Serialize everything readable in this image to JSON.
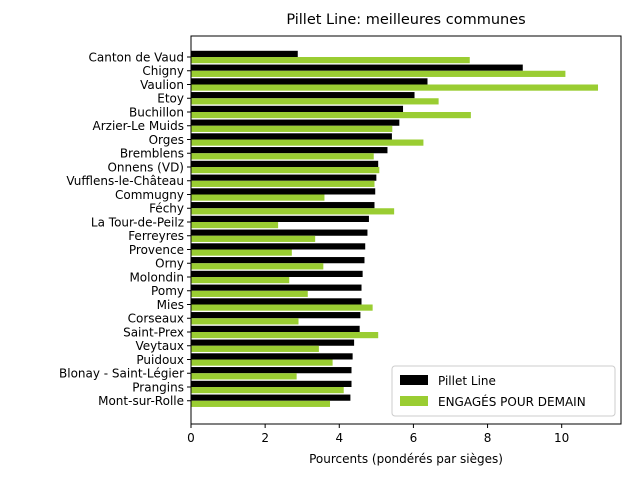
{
  "chart_data": {
    "type": "bar",
    "orientation": "horizontal",
    "title": "Pillet Line: meilleures communes",
    "xlabel": "Pourcents (pondérés par sièges)",
    "ylabel": "",
    "xlim": [
      0,
      11.6
    ],
    "xticks": [
      0,
      2,
      4,
      6,
      8,
      10
    ],
    "grid": false,
    "legend_position": "lower-right",
    "categories": [
      "Canton de Vaud",
      "Chigny",
      "Vaulion",
      "Etoy",
      "Buchillon",
      "Arzier-Le Muids",
      "Orges",
      "Bremblens",
      "Onnens (VD)",
      "Vufflens-le-Château",
      "Commugny",
      "Féchy",
      "La Tour-de-Peilz",
      "Ferreyres",
      "Provence",
      "Orny",
      "Molondin",
      "Pomy",
      "Mies",
      "Corseaux",
      "Saint-Prex",
      "Veytaux",
      "Puidoux",
      "Blonay - Saint-Légier",
      "Prangins",
      "Mont-sur-Rolle"
    ],
    "series": [
      {
        "name": "Pillet Line",
        "color": "#000000",
        "values": [
          2.88,
          8.95,
          6.38,
          6.03,
          5.72,
          5.62,
          5.42,
          5.3,
          5.05,
          5.0,
          4.97,
          4.95,
          4.8,
          4.76,
          4.7,
          4.68,
          4.63,
          4.6,
          4.6,
          4.57,
          4.55,
          4.4,
          4.36,
          4.33,
          4.33,
          4.3
        ]
      },
      {
        "name": "ENGAGÉS POUR DEMAIN",
        "color": "#9acd32",
        "values": [
          7.52,
          10.1,
          10.98,
          6.68,
          7.55,
          5.43,
          6.27,
          4.93,
          5.08,
          4.95,
          3.6,
          5.48,
          2.35,
          3.35,
          2.72,
          3.57,
          2.65,
          3.15,
          4.9,
          2.9,
          5.05,
          3.45,
          3.82,
          2.85,
          4.12,
          3.75
        ]
      }
    ]
  }
}
